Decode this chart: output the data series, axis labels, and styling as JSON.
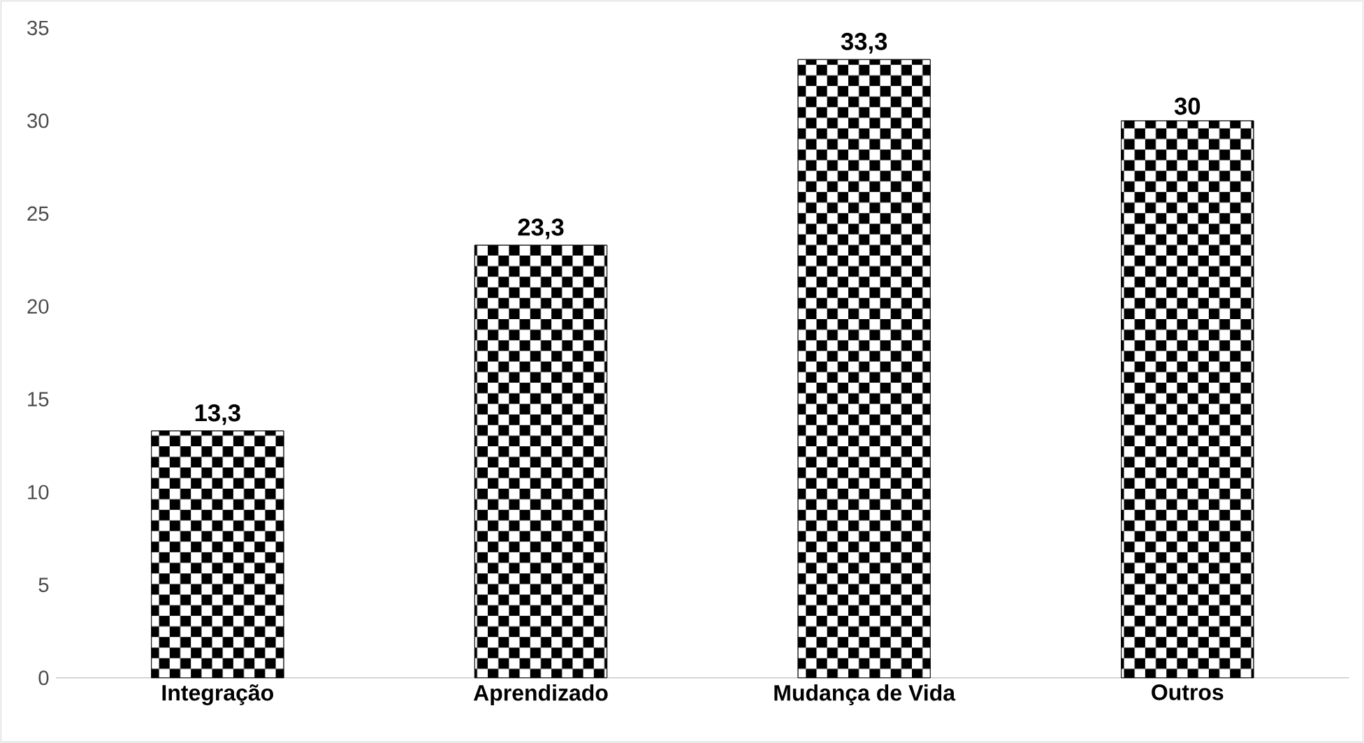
{
  "chart_data": {
    "type": "bar",
    "categories": [
      "Integração",
      "Aprendizado",
      "Mudança de Vida",
      "Outros"
    ],
    "values": [
      13.3,
      23.3,
      33.3,
      30
    ],
    "value_labels": [
      "13,3",
      "23,3",
      "33,3",
      "30"
    ],
    "color": "#000000",
    "ylim": [
      0,
      35
    ],
    "yticks": [
      0,
      5,
      10,
      15,
      20,
      25,
      30,
      35
    ]
  }
}
